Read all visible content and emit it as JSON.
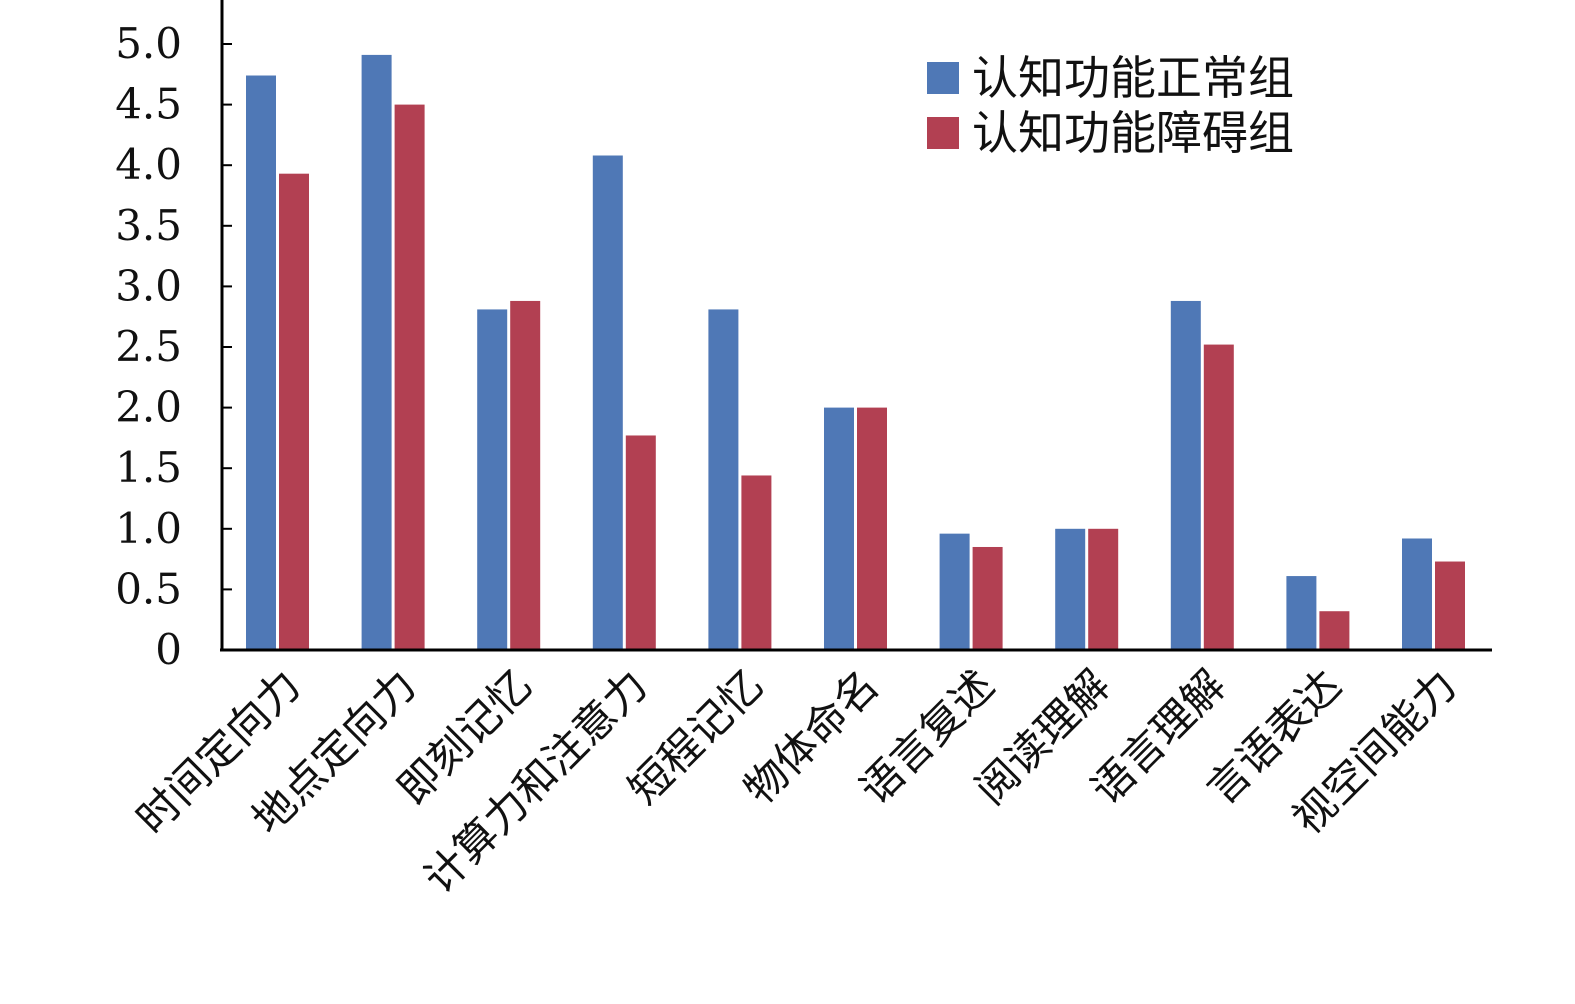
{
  "chart_data": {
    "type": "bar",
    "title": "",
    "xlabel": "",
    "ylabel": "",
    "ylim": [
      0,
      5.0
    ],
    "yticks": [
      "0",
      "0.5",
      "1.0",
      "1.5",
      "2.0",
      "2.5",
      "3.0",
      "3.5",
      "4.0",
      "4.5",
      "5.0"
    ],
    "categories": [
      "时间定向力",
      "地点定向力",
      "即刻记忆",
      "计算力和注意力",
      "短程记忆",
      "物体命名",
      "语言复述",
      "阅读理解",
      "语言理解",
      "言语表达",
      "视空间能力"
    ],
    "series": [
      {
        "name": "认知功能正常组",
        "color": "#4f78b6",
        "values": [
          4.74,
          4.91,
          2.81,
          4.08,
          2.81,
          2.0,
          0.96,
          1.0,
          2.88,
          0.61,
          0.92
        ]
      },
      {
        "name": "认知功能障碍组",
        "color": "#b24052",
        "values": [
          3.93,
          4.5,
          2.88,
          1.77,
          1.44,
          2.0,
          0.85,
          1.0,
          2.52,
          0.32,
          0.73
        ]
      }
    ],
    "legend_position": "top-right",
    "grid": false
  }
}
